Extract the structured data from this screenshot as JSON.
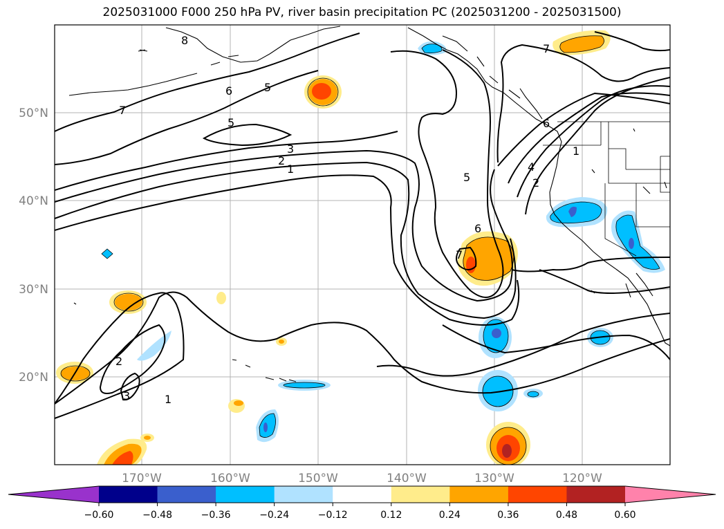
{
  "title": "2025031000 F000 250 hPa PV, river basin precipitation PC (2025031200 - 2025031500)",
  "latitude_labels": [
    "50°N",
    "40°N",
    "30°N",
    "20°N"
  ],
  "longitude_labels": [
    "170°W",
    "160°W",
    "150°W",
    "140°W",
    "130°W",
    "120°W"
  ],
  "colorbar": {
    "ticks": [
      "−0.60",
      "−0.48",
      "−0.36",
      "−0.24",
      "−0.12",
      "0.12",
      "0.24",
      "0.36",
      "0.48",
      "0.60"
    ],
    "colors": [
      "#9932cc",
      "#00008b",
      "#3a5fcd",
      "#00bfff",
      "#b0e2ff",
      "#ffffff",
      "#ffec8b",
      "#ffa500",
      "#ff4500",
      "#b22222",
      "#ff82ab"
    ]
  },
  "pv_contour_labels": [
    "8",
    "7",
    "6",
    "5",
    "5",
    "3",
    "2",
    "1",
    "5",
    "6",
    "7",
    "4",
    "2",
    "1",
    "6",
    "2",
    "3",
    "1",
    "7"
  ]
}
